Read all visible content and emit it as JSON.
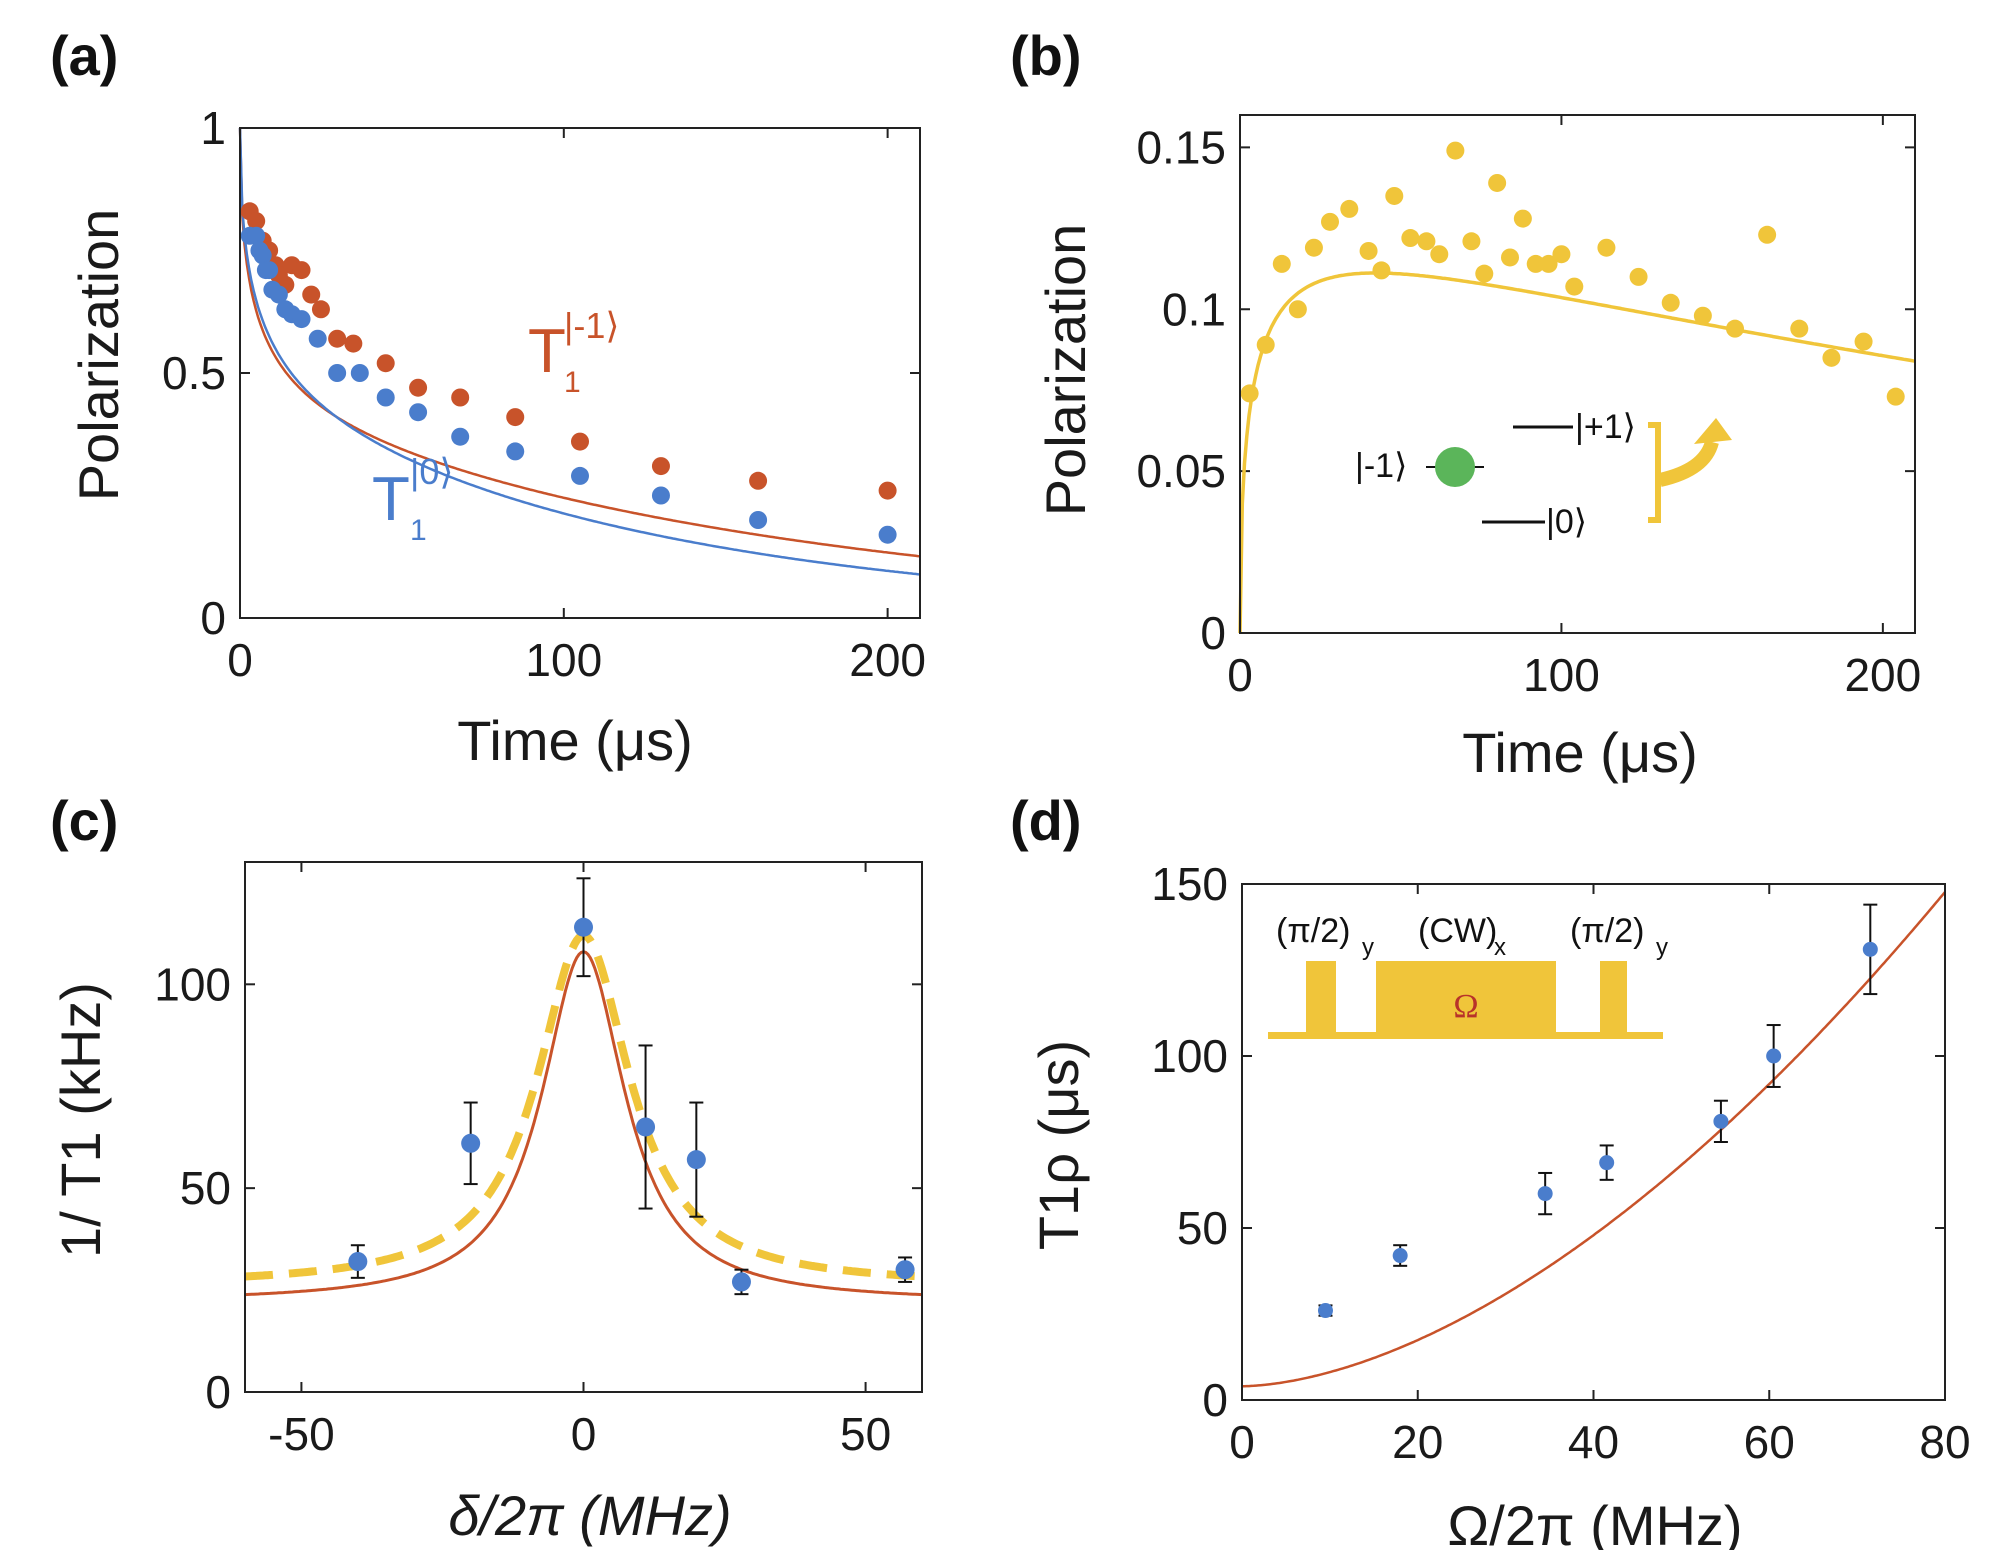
{
  "colors": {
    "red": "#c8532a",
    "blue": "#4a7dcc",
    "yellow": "#f0c53a",
    "green": "#5bb55a",
    "fitred": "#c8532a"
  },
  "chart_data": [
    {
      "panel": "(a)",
      "type": "scatter",
      "xlabel": "Time (μs)",
      "ylabel": "Polarization",
      "xlim": [
        0,
        210
      ],
      "ylim": [
        0,
        1
      ],
      "xticks": [
        0,
        100,
        200
      ],
      "xtick_labels": [
        "0",
        "100",
        "200"
      ],
      "yticks": [
        0,
        0.5,
        1
      ],
      "ytick_labels": [
        "0",
        "0.5",
        "1"
      ],
      "annotations": [
        {
          "main": "T",
          "sub": "1",
          "sup": "|-1⟩",
          "color": "red"
        },
        {
          "main": "T",
          "sub": "1",
          "sup": "|0⟩",
          "color": "blue"
        }
      ],
      "series": [
        {
          "name": "T1 |-1⟩",
          "color": "red",
          "x": [
            3,
            5,
            7,
            9,
            11,
            12,
            14,
            16,
            19,
            22,
            25,
            30,
            35,
            45,
            55,
            68,
            85,
            105,
            130,
            160,
            200
          ],
          "y": [
            0.83,
            0.81,
            0.77,
            0.75,
            0.72,
            0.7,
            0.68,
            0.72,
            0.71,
            0.66,
            0.63,
            0.57,
            0.56,
            0.52,
            0.47,
            0.45,
            0.41,
            0.36,
            0.31,
            0.28,
            0.26
          ],
          "fit": {
            "A": 0.57,
            "tau1": 5,
            "B": 0.43,
            "tau2": 170
          }
        },
        {
          "name": "T1 |0⟩",
          "color": "blue",
          "x": [
            3,
            5,
            6,
            7,
            8,
            9,
            10,
            12,
            14,
            16,
            19,
            24,
            30,
            37,
            45,
            55,
            68,
            85,
            105,
            130,
            160,
            200
          ],
          "y": [
            0.78,
            0.78,
            0.75,
            0.74,
            0.71,
            0.71,
            0.67,
            0.66,
            0.63,
            0.62,
            0.61,
            0.57,
            0.5,
            0.5,
            0.45,
            0.42,
            0.37,
            0.34,
            0.29,
            0.25,
            0.2,
            0.17
          ],
          "fit": {
            "A": 0.56,
            "tau1": 6,
            "B": 0.44,
            "tau2": 130
          }
        }
      ]
    },
    {
      "panel": "(b)",
      "type": "scatter",
      "xlabel": "Time (μs)",
      "ylabel": "Polarization",
      "xlim": [
        0,
        210
      ],
      "ylim": [
        0,
        0.16
      ],
      "xticks": [
        0,
        100,
        200
      ],
      "xtick_labels": [
        "0",
        "100",
        "200"
      ],
      "yticks": [
        0,
        0.05,
        0.1,
        0.15
      ],
      "ytick_labels": [
        "0",
        "0.05",
        "0.1",
        "0.15"
      ],
      "inset": {
        "state_minus": "|-1⟩",
        "state_plus": "|+1⟩",
        "state_zero": "|0⟩"
      },
      "series": [
        {
          "name": "data",
          "color": "yellow",
          "x": [
            3,
            8,
            13,
            18,
            23,
            28,
            34,
            40,
            44,
            48,
            53,
            58,
            62,
            67,
            72,
            76,
            80,
            84,
            88,
            92,
            96,
            100,
            104,
            114,
            124,
            134,
            144,
            154,
            164,
            174,
            184,
            194,
            204
          ],
          "y": [
            0.074,
            0.089,
            0.114,
            0.1,
            0.119,
            0.127,
            0.131,
            0.118,
            0.112,
            0.135,
            0.122,
            0.121,
            0.117,
            0.149,
            0.121,
            0.111,
            0.139,
            0.116,
            0.128,
            0.114,
            0.114,
            0.117,
            0.107,
            0.119,
            0.11,
            0.102,
            0.098,
            0.094,
            0.123,
            0.094,
            0.085,
            0.09,
            0.073
          ],
          "fit": {
            "A": 0.128,
            "tau_decay": 500,
            "tau_rise": 5
          }
        }
      ]
    },
    {
      "panel": "(c)",
      "type": "scatter",
      "xlabel": "δ/2π (MHz)",
      "ylabel": "1/ T1 (kHz)",
      "xlim": [
        -60,
        60
      ],
      "ylim": [
        0,
        130
      ],
      "xticks": [
        -50,
        0,
        50
      ],
      "xtick_labels": [
        "-50",
        "0",
        "50"
      ],
      "yticks": [
        0,
        50,
        100
      ],
      "ytick_labels": [
        "0",
        "50",
        "100"
      ],
      "series": [
        {
          "name": "data",
          "color": "blue",
          "x": [
            -40,
            -20,
            0,
            11,
            20,
            28,
            57
          ],
          "y": [
            32,
            61,
            114,
            65,
            57,
            27,
            30
          ],
          "err": [
            4,
            10,
            12,
            20,
            14,
            3,
            3
          ]
        }
      ],
      "fits": [
        {
          "name": "theory (solid)",
          "color": "fitred",
          "style": "solid",
          "base": 22,
          "amp": 86,
          "gamma": 9
        },
        {
          "name": "fit (dashed)",
          "color": "yellow",
          "style": "dashed",
          "base": 26,
          "amp": 86,
          "gamma": 10
        }
      ]
    },
    {
      "panel": "(d)",
      "type": "scatter",
      "xlabel": "Ω/2π (MHz)",
      "ylabel": "T1ρ (μs)",
      "xlim": [
        0,
        80
      ],
      "ylim": [
        0,
        150
      ],
      "xticks": [
        0,
        20,
        40,
        60,
        80
      ],
      "xtick_labels": [
        "0",
        "20",
        "40",
        "60",
        "80"
      ],
      "yticks": [
        0,
        50,
        100,
        150
      ],
      "ytick_labels": [
        "0",
        "50",
        "100",
        "150"
      ],
      "inset": {
        "pulse1": "(π/2)",
        "pulse1_sub": "y",
        "cw": "(CW)",
        "cw_sub": "x",
        "pulse2": "(π/2)",
        "pulse2_sub": "y",
        "omega": "Ω"
      },
      "series": [
        {
          "name": "data",
          "color": "blue",
          "x": [
            9.5,
            18,
            34.5,
            41.5,
            54.5,
            60.5,
            71.5
          ],
          "y": [
            26,
            42,
            60,
            69,
            81,
            100,
            131
          ],
          "err": [
            1.5,
            3,
            6,
            5,
            6,
            9,
            13
          ]
        }
      ],
      "fits": [
        {
          "name": "theory",
          "color": "fitred",
          "style": "solid",
          "a": 4,
          "b": 0.08,
          "c": 1.28
        }
      ]
    }
  ]
}
